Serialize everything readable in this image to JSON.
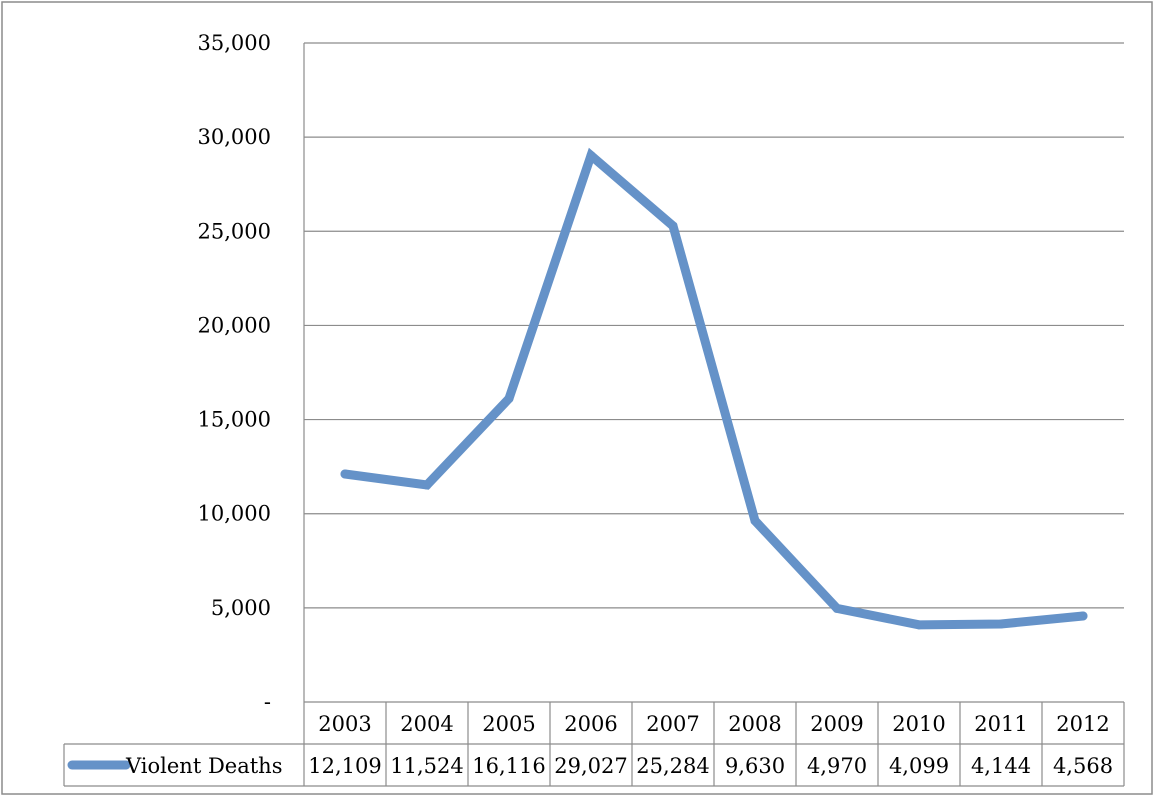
{
  "chart_data": {
    "type": "line",
    "categories": [
      "2003",
      "2004",
      "2005",
      "2006",
      "2007",
      "2008",
      "2009",
      "2010",
      "2011",
      "2012"
    ],
    "series": [
      {
        "name": "Violent Deaths",
        "values": [
          12109,
          11524,
          16116,
          29027,
          25284,
          9630,
          4970,
          4099,
          4144,
          4568
        ],
        "value_labels": [
          "12,109",
          "11,524",
          "16,116",
          "29,027",
          "25,284",
          "9,630",
          "4,970",
          "4,099",
          "4,144",
          "4,568"
        ],
        "color": "#6592c8"
      }
    ],
    "y_ticks": [
      {
        "value": 0,
        "label": "-"
      },
      {
        "value": 5000,
        "label": "5,000"
      },
      {
        "value": 10000,
        "label": "10,000"
      },
      {
        "value": 15000,
        "label": "15,000"
      },
      {
        "value": 20000,
        "label": "20,000"
      },
      {
        "value": 25000,
        "label": "25,000"
      },
      {
        "value": 30000,
        "label": "30,000"
      },
      {
        "value": 35000,
        "label": "35,000"
      }
    ],
    "ylim": [
      0,
      35000
    ],
    "grid": true,
    "legend": "data-table"
  }
}
